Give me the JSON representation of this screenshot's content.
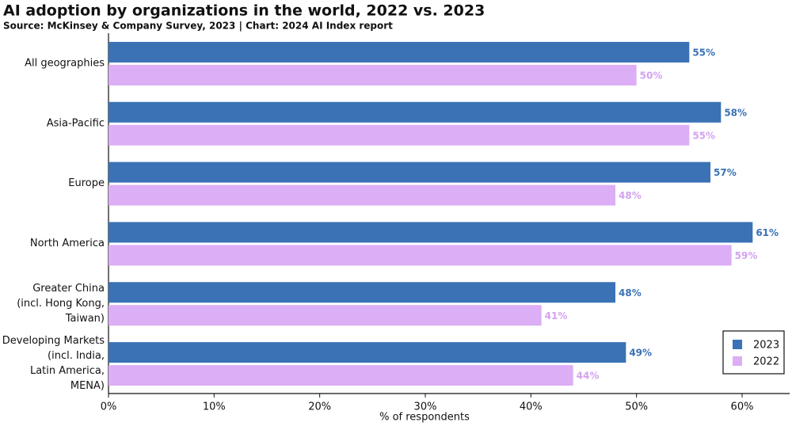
{
  "chart_data": {
    "type": "hbar",
    "title": "AI adoption by organizations in the world, 2022 vs. 2023",
    "subtitle": "Source: McKinsey & Company Survey, 2023 | Chart: 2024 AI Index report",
    "x_label": "% of respondents",
    "categories": [
      [
        "All geographies"
      ],
      [
        "Asia-Pacific"
      ],
      [
        "Europe"
      ],
      [
        "North America"
      ],
      [
        "Greater China",
        "(incl. Hong Kong,",
        "Taiwan)"
      ],
      [
        "Developing Markets",
        "(incl. India,",
        "Latin America,",
        "MENA)"
      ]
    ],
    "series": [
      {
        "name": "2023",
        "color": "#3a72b5",
        "label_color": "#3a72b5",
        "values": [
          55,
          58,
          57,
          61,
          48,
          49
        ],
        "value_labels": [
          "55%",
          "58%",
          "57%",
          "61%",
          "48%",
          "49%"
        ]
      },
      {
        "name": "2022",
        "color": "#dcaef5",
        "label_color": "#d3a2ef",
        "values": [
          50,
          55,
          48,
          59,
          41,
          44
        ],
        "value_labels": [
          "50%",
          "55%",
          "48%",
          "59%",
          "41%",
          "44%"
        ]
      }
    ],
    "xlim": [
      0,
      64.5
    ],
    "xticks": [
      {
        "value": 0,
        "label": "0%"
      },
      {
        "value": 10,
        "label": "10%"
      },
      {
        "value": 20,
        "label": "20%"
      },
      {
        "value": 30,
        "label": "30%"
      },
      {
        "value": 40,
        "label": "40%"
      },
      {
        "value": 50,
        "label": "50%"
      },
      {
        "value": 60,
        "label": "60%"
      }
    ],
    "grid": false,
    "legend_position": "lower-right"
  }
}
